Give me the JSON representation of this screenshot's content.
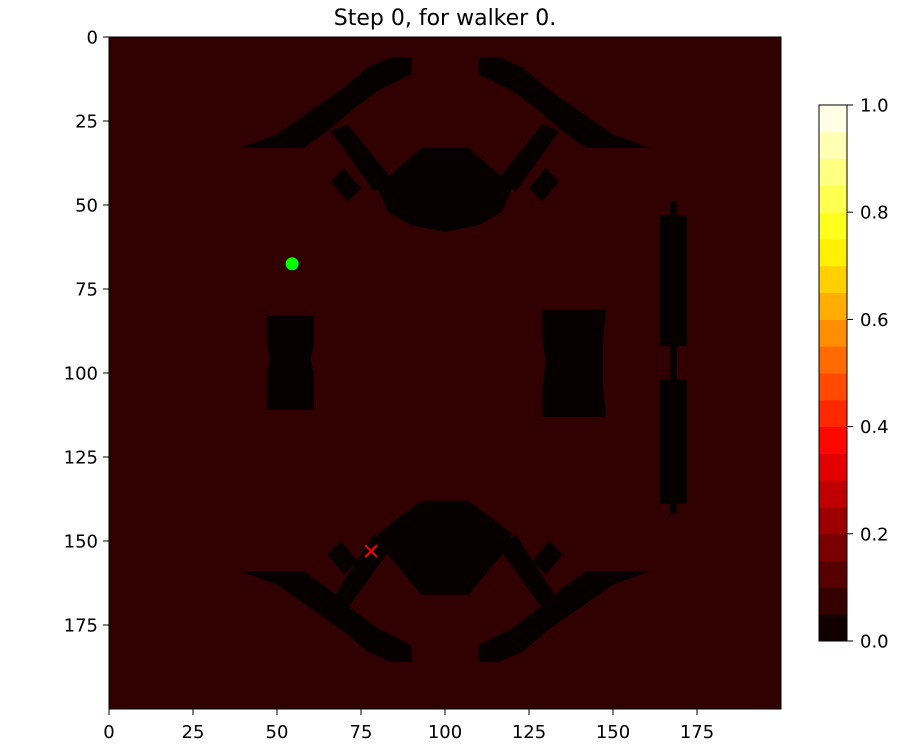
{
  "chart_data": {
    "type": "heatmap",
    "title": "Step 0, for walker 0.",
    "xlabel": "",
    "ylabel": "",
    "xlim": [
      0,
      200
    ],
    "ylim": [
      200,
      0
    ],
    "x_ticks": [
      "0",
      "25",
      "50",
      "75",
      "100",
      "125",
      "150",
      "175"
    ],
    "y_ticks": [
      "0",
      "25",
      "50",
      "75",
      "100",
      "125",
      "150",
      "175"
    ],
    "colormap": "hot",
    "colorbar": {
      "range": [
        0.0,
        1.0
      ],
      "ticks": [
        "0.0",
        "0.2",
        "0.4",
        "0.6",
        "0.8",
        "1.0"
      ],
      "levels": 20
    },
    "background_value": 0.07,
    "obstacle_value": 0.0,
    "obstacles": [
      {
        "name": "top-left-arm",
        "polygon": [
          [
            39,
            33
          ],
          [
            58,
            33
          ],
          [
            65,
            28
          ],
          [
            72,
            22
          ],
          [
            80,
            16
          ],
          [
            86,
            13
          ],
          [
            90,
            11
          ],
          [
            90,
            6
          ],
          [
            84,
            6
          ],
          [
            77,
            9
          ],
          [
            70,
            15
          ],
          [
            60,
            22
          ],
          [
            50,
            29
          ],
          [
            39,
            33
          ]
        ]
      },
      {
        "name": "bottom-left-arm",
        "polygon": [
          [
            39,
            159
          ],
          [
            58,
            159
          ],
          [
            65,
            164
          ],
          [
            72,
            170
          ],
          [
            80,
            176
          ],
          [
            86,
            179
          ],
          [
            90,
            181
          ],
          [
            90,
            186
          ],
          [
            84,
            186
          ],
          [
            77,
            183
          ],
          [
            70,
            177
          ],
          [
            60,
            170
          ],
          [
            50,
            163
          ],
          [
            39,
            159
          ]
        ]
      },
      {
        "name": "top-right-arm",
        "polygon": [
          [
            161,
            33
          ],
          [
            142,
            33
          ],
          [
            135,
            28
          ],
          [
            128,
            22
          ],
          [
            120,
            16
          ],
          [
            114,
            13
          ],
          [
            110,
            11
          ],
          [
            110,
            6
          ],
          [
            116,
            6
          ],
          [
            123,
            9
          ],
          [
            130,
            15
          ],
          [
            140,
            22
          ],
          [
            150,
            29
          ],
          [
            161,
            33
          ]
        ]
      },
      {
        "name": "bottom-right-arm",
        "polygon": [
          [
            161,
            159
          ],
          [
            142,
            159
          ],
          [
            135,
            164
          ],
          [
            128,
            170
          ],
          [
            120,
            176
          ],
          [
            114,
            179
          ],
          [
            110,
            181
          ],
          [
            110,
            186
          ],
          [
            116,
            186
          ],
          [
            123,
            183
          ],
          [
            130,
            177
          ],
          [
            140,
            170
          ],
          [
            150,
            163
          ],
          [
            161,
            159
          ]
        ]
      },
      {
        "name": "top-center-body",
        "polygon": [
          [
            80,
            45
          ],
          [
            85,
            40
          ],
          [
            93,
            33
          ],
          [
            107,
            33
          ],
          [
            115,
            40
          ],
          [
            120,
            45
          ],
          [
            117,
            52
          ],
          [
            110,
            56
          ],
          [
            100,
            58
          ],
          [
            90,
            56
          ],
          [
            83,
            52
          ],
          [
            80,
            45
          ]
        ]
      },
      {
        "name": "bottom-center-body",
        "polygon": [
          [
            80,
            148
          ],
          [
            85,
            144
          ],
          [
            93,
            138
          ],
          [
            107,
            138
          ],
          [
            115,
            144
          ],
          [
            120,
            148
          ],
          [
            117,
            154
          ],
          [
            112,
            160
          ],
          [
            107,
            166
          ],
          [
            93,
            166
          ],
          [
            88,
            160
          ],
          [
            83,
            154
          ],
          [
            80,
            148
          ]
        ]
      },
      {
        "name": "top-left-diagonal",
        "polygon": [
          [
            66,
            28
          ],
          [
            71,
            26
          ],
          [
            84,
            42
          ],
          [
            79,
            46
          ],
          [
            66,
            28
          ]
        ]
      },
      {
        "name": "top-right-diagonal",
        "polygon": [
          [
            134,
            28
          ],
          [
            129,
            26
          ],
          [
            116,
            42
          ],
          [
            121,
            46
          ],
          [
            134,
            28
          ]
        ]
      },
      {
        "name": "top-left-nub",
        "polygon": [
          [
            66,
            43
          ],
          [
            70,
            39
          ],
          [
            75,
            45
          ],
          [
            71,
            49
          ],
          [
            66,
            43
          ]
        ]
      },
      {
        "name": "top-right-nub",
        "polygon": [
          [
            134,
            43
          ],
          [
            130,
            39
          ],
          [
            125,
            45
          ],
          [
            129,
            49
          ],
          [
            134,
            43
          ]
        ]
      },
      {
        "name": "bottom-left-diagonal",
        "polygon": [
          [
            66,
            168
          ],
          [
            71,
            170
          ],
          [
            84,
            152
          ],
          [
            79,
            148
          ],
          [
            66,
            168
          ]
        ]
      },
      {
        "name": "bottom-right-diagonal",
        "polygon": [
          [
            134,
            168
          ],
          [
            129,
            170
          ],
          [
            116,
            152
          ],
          [
            121,
            148
          ],
          [
            134,
            168
          ]
        ]
      },
      {
        "name": "bottom-left-nub",
        "polygon": [
          [
            65,
            154
          ],
          [
            69,
            150
          ],
          [
            74,
            156
          ],
          [
            70,
            160
          ],
          [
            65,
            154
          ]
        ]
      },
      {
        "name": "bottom-right-nub",
        "polygon": [
          [
            135,
            154
          ],
          [
            131,
            150
          ],
          [
            126,
            156
          ],
          [
            130,
            160
          ],
          [
            135,
            154
          ]
        ]
      },
      {
        "name": "left-block",
        "polygon": [
          [
            47,
            83
          ],
          [
            61,
            83
          ],
          [
            61,
            91
          ],
          [
            60,
            96
          ],
          [
            61,
            100
          ],
          [
            61,
            111
          ],
          [
            47,
            111
          ],
          [
            47,
            100
          ],
          [
            48,
            96
          ],
          [
            47,
            91
          ],
          [
            47,
            83
          ]
        ]
      },
      {
        "name": "right-block",
        "polygon": [
          [
            129,
            81
          ],
          [
            148,
            81
          ],
          [
            147,
            90
          ],
          [
            147,
            104
          ],
          [
            148,
            113
          ],
          [
            129,
            113
          ],
          [
            129,
            104
          ],
          [
            130,
            97
          ],
          [
            129,
            90
          ],
          [
            129,
            81
          ]
        ]
      },
      {
        "name": "right-pillar-top",
        "polygon": [
          [
            164,
            53
          ],
          [
            172,
            53
          ],
          [
            172,
            92
          ],
          [
            164,
            92
          ],
          [
            164,
            53
          ]
        ]
      },
      {
        "name": "right-pillar-bottom",
        "polygon": [
          [
            164,
            102
          ],
          [
            172,
            102
          ],
          [
            172,
            139
          ],
          [
            164,
            139
          ],
          [
            164,
            102
          ]
        ]
      },
      {
        "name": "right-pillar-neck",
        "polygon": [
          [
            167,
            90
          ],
          [
            169,
            90
          ],
          [
            169,
            104
          ],
          [
            167,
            104
          ],
          [
            167,
            90
          ]
        ]
      },
      {
        "name": "right-pillar-cap-top",
        "polygon": [
          [
            167,
            49
          ],
          [
            169,
            49
          ],
          [
            169,
            54
          ],
          [
            167,
            54
          ],
          [
            167,
            49
          ]
        ]
      },
      {
        "name": "right-pillar-cap-bottom",
        "polygon": [
          [
            167,
            138
          ],
          [
            169,
            138
          ],
          [
            169,
            142
          ],
          [
            167,
            142
          ],
          [
            167,
            138
          ]
        ]
      }
    ],
    "markers": [
      {
        "name": "walker-position",
        "shape": "circle",
        "x": 54.5,
        "y": 67.5,
        "color": "#00ff00"
      },
      {
        "name": "goal-position",
        "shape": "x",
        "x": 78,
        "y": 153,
        "color": "#ff0000"
      }
    ]
  }
}
